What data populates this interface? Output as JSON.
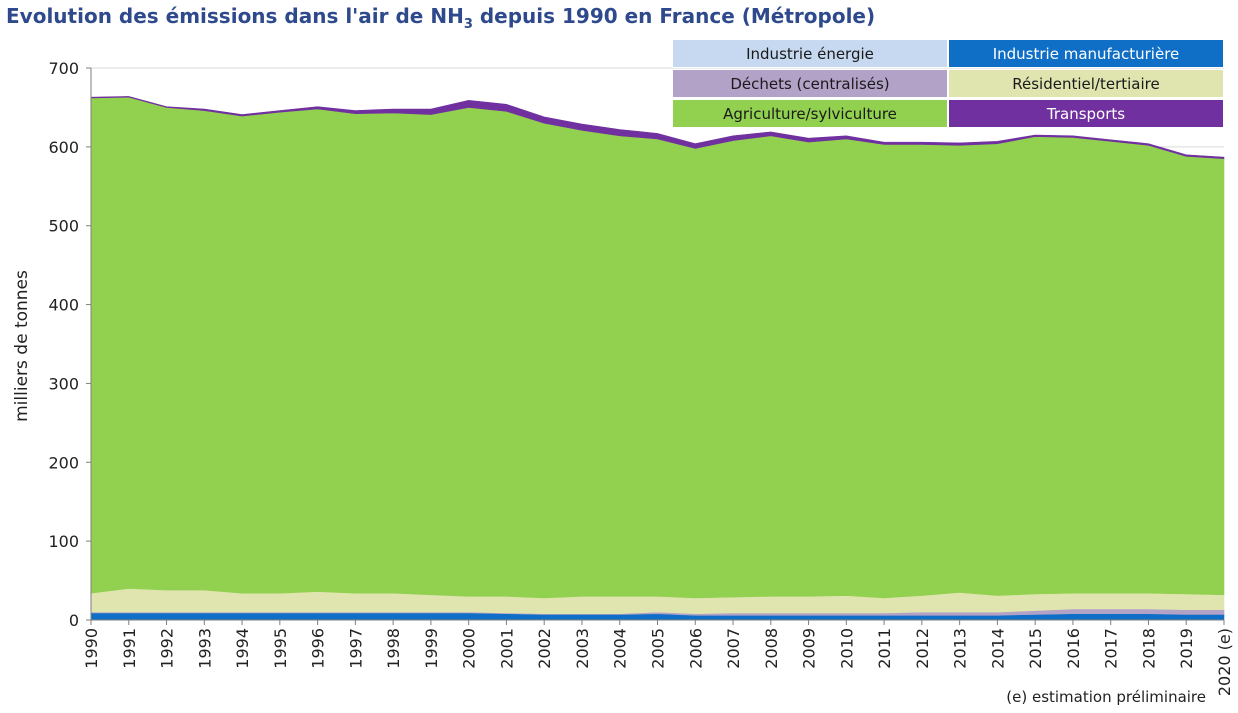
{
  "chart_data": {
    "type": "area",
    "stacked": true,
    "title_prefix": "Evolution des émissions dans l'air de NH",
    "title_subscript": "3",
    "title_suffix": " depuis 1990 en France (Métropole)",
    "ylabel": "milliers de tonnes",
    "xlabel": "",
    "ylim": [
      0,
      700
    ],
    "yticks": [
      0,
      100,
      200,
      300,
      400,
      500,
      600,
      700
    ],
    "grid": "horizontal",
    "legend_position": "top-right",
    "categories": [
      "1990",
      "1991",
      "1992",
      "1993",
      "1994",
      "1995",
      "1996",
      "1997",
      "1998",
      "1999",
      "2000",
      "2001",
      "2002",
      "2003",
      "2004",
      "2005",
      "2006",
      "2007",
      "2008",
      "2009",
      "2010",
      "2011",
      "2012",
      "2013",
      "2014",
      "2015",
      "2016",
      "2017",
      "2018",
      "2019",
      "2020 (e)"
    ],
    "series": [
      {
        "name": "Industrie énergie",
        "color": "#c6d9f1",
        "values": [
          1,
          1,
          1,
          1,
          1,
          1,
          1,
          1,
          1,
          1,
          1,
          1,
          1,
          1,
          1,
          1,
          1,
          1,
          1,
          1,
          1,
          1,
          1,
          1,
          1,
          1,
          1,
          1,
          1,
          1,
          1
        ]
      },
      {
        "name": "Industrie manufacturière",
        "color": "#0f6fc6",
        "values": [
          8,
          8,
          8,
          8,
          8,
          8,
          8,
          8,
          8,
          8,
          8,
          7,
          6,
          6,
          6,
          7,
          5,
          5,
          5,
          5,
          5,
          5,
          5,
          5,
          5,
          6,
          7,
          7,
          7,
          6,
          6
        ]
      },
      {
        "name": "Déchets (centralisés)",
        "color": "#b3a2c7",
        "values": [
          1,
          1,
          1,
          1,
          1,
          1,
          1,
          1,
          1,
          1,
          1,
          1,
          1,
          1,
          1,
          2,
          2,
          3,
          3,
          3,
          3,
          3,
          4,
          4,
          4,
          5,
          6,
          6,
          6,
          6,
          6
        ]
      },
      {
        "name": "Résidentiel/tertiaire",
        "color": "#e0e5b0",
        "values": [
          24,
          30,
          28,
          28,
          24,
          24,
          26,
          24,
          24,
          22,
          20,
          21,
          20,
          22,
          22,
          20,
          20,
          20,
          21,
          21,
          22,
          19,
          21,
          25,
          21,
          21,
          20,
          20,
          20,
          20,
          19
        ]
      },
      {
        "name": "Agriculture/sylviculture",
        "color": "#92d050",
        "values": [
          628,
          623,
          612,
          608,
          605,
          610,
          612,
          608,
          609,
          609,
          620,
          615,
          602,
          591,
          584,
          580,
          570,
          579,
          584,
          576,
          579,
          575,
          572,
          567,
          573,
          580,
          578,
          573,
          568,
          555,
          553
        ]
      },
      {
        "name": "Transports",
        "color": "#7030a0",
        "values": [
          1,
          1,
          1,
          2,
          2,
          2,
          3,
          4,
          5,
          7,
          9,
          9,
          8,
          8,
          8,
          7,
          6,
          6,
          5,
          5,
          4,
          3,
          3,
          3,
          3,
          2,
          2,
          2,
          2,
          2,
          2
        ]
      }
    ],
    "legend_rows": [
      [
        "Industrie énergie",
        "Industrie manufacturière"
      ],
      [
        "Déchets (centralisés)",
        "Résidentiel/tertiaire"
      ],
      [
        "Agriculture/sylviculture",
        "Transports"
      ]
    ],
    "footnote": "(e) estimation préliminaire"
  }
}
